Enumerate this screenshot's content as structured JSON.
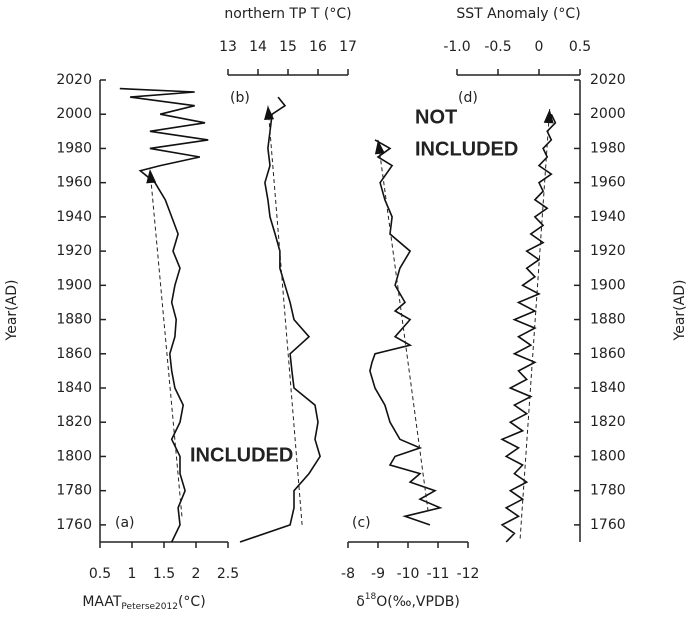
{
  "chart_data": [
    {
      "type": "line",
      "panel_label": "(a)",
      "xaxis_position": "bottom",
      "xlabel": "MAAT",
      "xlabel_sub": "Peterse2012",
      "xlabel_unit": "(°C)",
      "xlim": [
        0.5,
        2.5
      ],
      "xticks": [
        0.5,
        1,
        1.5,
        2,
        2.5
      ],
      "ylabel": "Year(AD)",
      "ylim": [
        1750,
        2020
      ],
      "yticks": [
        1760,
        1780,
        1800,
        1820,
        1840,
        1860,
        1880,
        1900,
        1920,
        1940,
        1960,
        1980,
        2000,
        2020
      ],
      "annotation": "INCLUDED",
      "annotation_color": "#3aaa4a",
      "color": "#111111",
      "years": [
        1750,
        1760,
        1770,
        1780,
        1790,
        1800,
        1810,
        1820,
        1830,
        1840,
        1850,
        1860,
        1870,
        1880,
        1890,
        1900,
        1910,
        1920,
        1930,
        1940,
        1950,
        1960,
        1967,
        1970,
        1975,
        1980,
        1985,
        1990,
        1995,
        2000,
        2005,
        2010,
        2013,
        2015
      ],
      "values": [
        1.62,
        1.75,
        1.72,
        1.83,
        1.75,
        1.75,
        1.62,
        1.75,
        1.8,
        1.67,
        1.62,
        1.59,
        1.67,
        1.69,
        1.62,
        1.67,
        1.75,
        1.64,
        1.72,
        1.62,
        1.52,
        1.36,
        1.13,
        1.44,
        2.06,
        1.28,
        2.19,
        1.28,
        2.14,
        1.44,
        1.98,
        0.97,
        1.98,
        0.81
      ],
      "trend": {
        "years": [
          1765,
          1968
        ],
        "values": [
          1.78,
          1.28
        ]
      }
    },
    {
      "type": "line",
      "panel_label": "(b)",
      "xaxis_position": "top",
      "xlabel": "northern TP T (°C)",
      "xlim": [
        13,
        17
      ],
      "xticks": [
        13,
        14,
        15,
        16,
        17
      ],
      "ylim": [
        1750,
        2020
      ],
      "color": "#111111",
      "years": [
        1750,
        1760,
        1770,
        1780,
        1790,
        1800,
        1810,
        1820,
        1830,
        1840,
        1850,
        1860,
        1870,
        1880,
        1890,
        1900,
        1910,
        1920,
        1930,
        1940,
        1950,
        1960,
        1970,
        1980,
        1990,
        2000,
        2005,
        2010
      ],
      "values": [
        13.4,
        15.07,
        15.2,
        15.2,
        15.7,
        16.07,
        15.9,
        16.0,
        15.9,
        15.2,
        15.13,
        15.07,
        15.7,
        15.2,
        15.07,
        14.9,
        14.73,
        14.73,
        14.57,
        14.4,
        14.33,
        14.23,
        14.4,
        14.33,
        14.4,
        14.47,
        14.9,
        14.67
      ],
      "trend": {
        "years": [
          1760,
          2005
        ],
        "values": [
          15.47,
          14.33
        ]
      }
    },
    {
      "type": "line",
      "panel_label": "(c)",
      "xaxis_position": "bottom",
      "xlabel": "δ",
      "xlabel_sup": "18",
      "xlabel_unit": "O(‰,VPDB)",
      "xlim": [
        -8,
        -12
      ],
      "xticks": [
        -8,
        -9,
        -10,
        -11,
        -12
      ],
      "ylim": [
        1750,
        2020
      ],
      "color": "#111111",
      "years": [
        1760,
        1765,
        1770,
        1775,
        1780,
        1785,
        1790,
        1795,
        1800,
        1805,
        1810,
        1820,
        1830,
        1840,
        1850,
        1855,
        1860,
        1865,
        1870,
        1880,
        1885,
        1890,
        1900,
        1910,
        1920,
        1930,
        1940,
        1950,
        1960,
        1970,
        1975,
        1980,
        1985
      ],
      "values": [
        -10.73,
        -9.9,
        -11.07,
        -10.4,
        -10.9,
        -10.07,
        -10.4,
        -9.4,
        -9.57,
        -10.4,
        -9.73,
        -9.4,
        -9.23,
        -8.9,
        -8.73,
        -8.8,
        -8.9,
        -10.07,
        -9.57,
        -10.07,
        -9.57,
        -9.9,
        -9.57,
        -9.73,
        -10.07,
        -9.4,
        -9.47,
        -9.23,
        -9.07,
        -9.47,
        -9.0,
        -9.4,
        -8.9
      ],
      "trend": {
        "years": [
          1768,
          1985
        ],
        "values": [
          -10.67,
          -9.0
        ]
      }
    },
    {
      "type": "line",
      "panel_label": "(d)",
      "xaxis_position": "top",
      "xlabel": "SST Anomaly (°C)",
      "xlim": [
        -1,
        0.5
      ],
      "xticks": [
        {
          "value": -1,
          "label": "-1.0"
        },
        -0.5,
        0,
        0.5
      ],
      "ylabel": "Year(AD)",
      "ylim": [
        1750,
        2020
      ],
      "yticks": [
        1760,
        1780,
        1800,
        1820,
        1840,
        1860,
        1880,
        1900,
        1920,
        1940,
        1960,
        1980,
        2000,
        2020
      ],
      "annotation_lines": [
        "NOT",
        "INCLUDED"
      ],
      "annotation_color": "#e02a2a",
      "color": "#111111",
      "years": [
        1750,
        1755,
        1760,
        1765,
        1770,
        1775,
        1780,
        1785,
        1790,
        1795,
        1800,
        1805,
        1810,
        1815,
        1820,
        1825,
        1830,
        1835,
        1840,
        1845,
        1850,
        1855,
        1860,
        1865,
        1870,
        1875,
        1880,
        1885,
        1890,
        1895,
        1900,
        1905,
        1910,
        1915,
        1920,
        1925,
        1930,
        1935,
        1940,
        1945,
        1950,
        1955,
        1960,
        1965,
        1970,
        1975,
        1980,
        1985,
        1990,
        1995,
        2000
      ],
      "values": [
        -0.4,
        -0.3,
        -0.45,
        -0.25,
        -0.4,
        -0.2,
        -0.35,
        -0.15,
        -0.3,
        -0.2,
        -0.4,
        -0.25,
        -0.45,
        -0.2,
        -0.35,
        -0.15,
        -0.3,
        -0.1,
        -0.35,
        -0.15,
        -0.25,
        -0.05,
        -0.3,
        -0.1,
        -0.25,
        -0.05,
        -0.3,
        -0.05,
        -0.25,
        0,
        -0.2,
        -0.05,
        -0.15,
        0,
        -0.15,
        0.05,
        -0.1,
        0.05,
        -0.05,
        0.1,
        -0.05,
        0.05,
        0,
        0.15,
        0,
        0.1,
        0.05,
        0.15,
        0.1,
        0.2,
        0.15
      ],
      "trend": {
        "years": [
          1752,
          2003
        ],
        "values": [
          -0.23,
          0.13
        ]
      }
    }
  ]
}
